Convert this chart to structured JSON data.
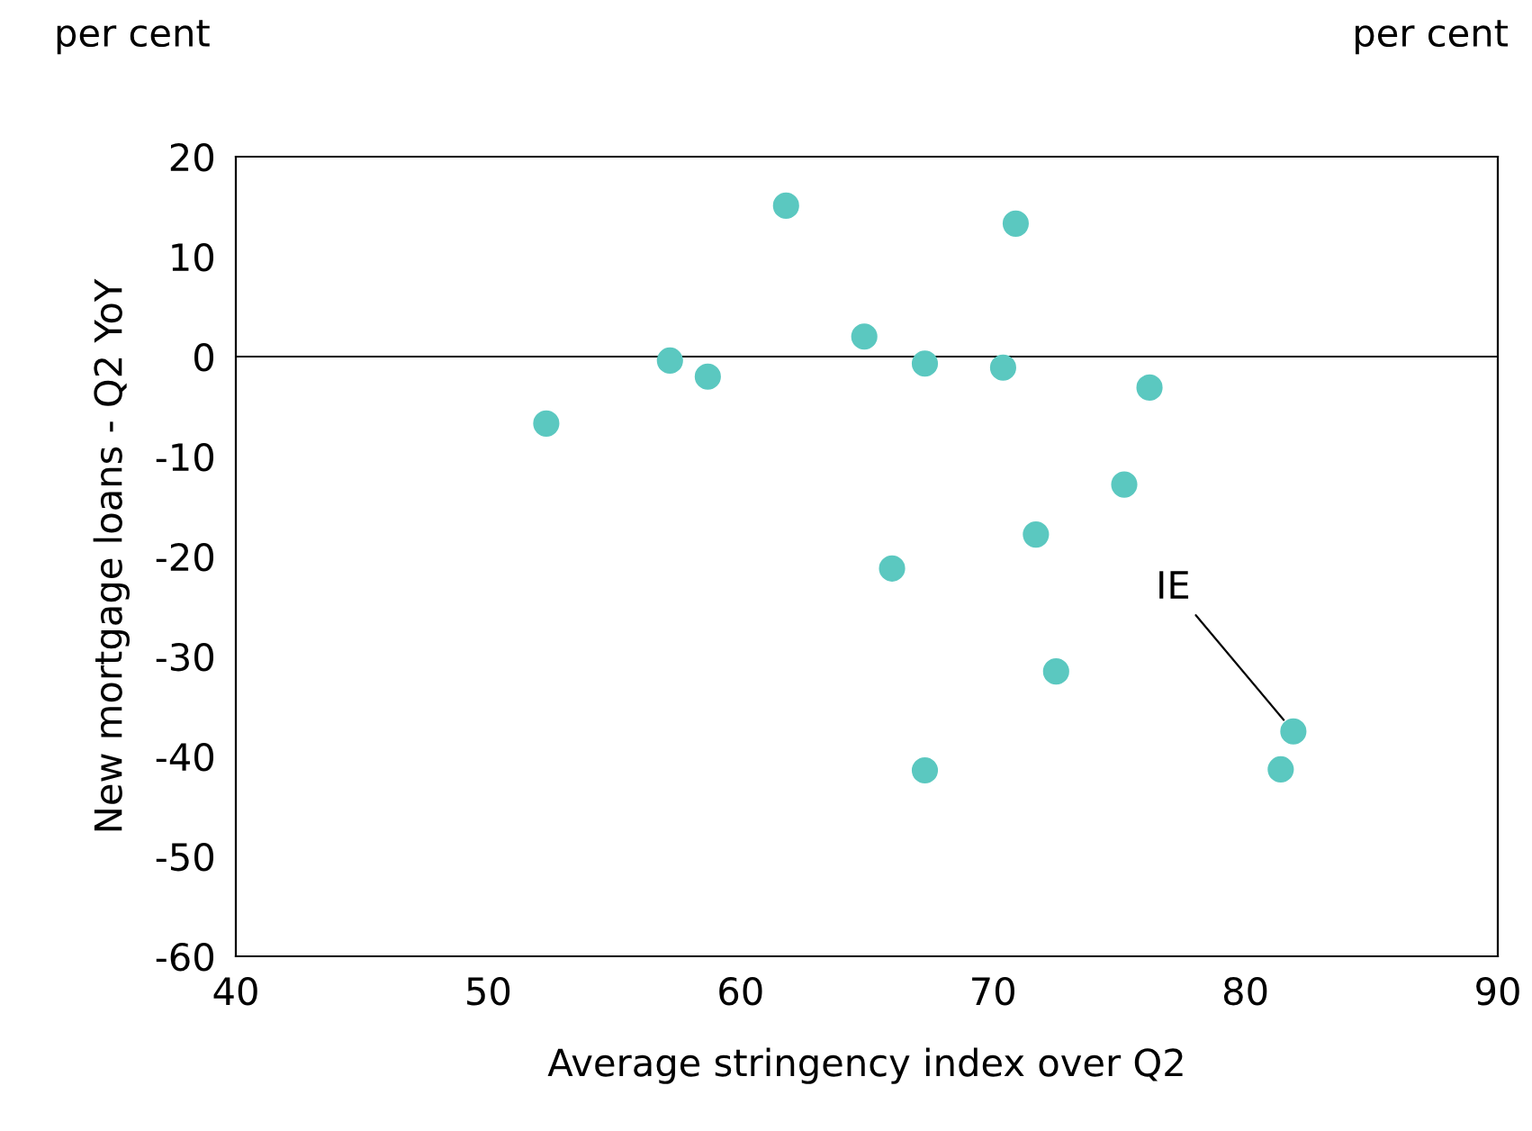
{
  "chart_data": {
    "type": "scatter",
    "xlabel": "Average stringency index over Q2",
    "ylabel": "New mortgage loans - Q2 YoY",
    "x": [
      52.3,
      57.2,
      58.7,
      61.8,
      64.9,
      67.3,
      70.4,
      70.9,
      76.2,
      75.2,
      71.7,
      66.0,
      72.5,
      67.3,
      81.4,
      81.9
    ],
    "series": [
      {
        "color": "#5bc8c0",
        "values": [
          -6.7,
          -0.4,
          -2.0,
          15.1,
          2.0,
          -0.7,
          -1.1,
          13.3,
          -3.1,
          -12.8,
          -17.8,
          -21.2,
          -31.5,
          -41.4,
          -41.3,
          -37.5
        ]
      }
    ],
    "xlim": [
      40,
      90
    ],
    "xticks": [
      40,
      50,
      60,
      70,
      80,
      90
    ],
    "ylim": [
      -60,
      20
    ],
    "yticks": [
      -60,
      -50,
      -40,
      -30,
      -20,
      -10,
      0,
      10,
      20
    ],
    "ref_lines": [
      {
        "axis": "y",
        "value": 0,
        "color": "#000000"
      }
    ],
    "annotations": [
      {
        "text": "IE",
        "x": 81.9,
        "y": -37.5
      },
      "per cent",
      "per cent"
    ],
    "marker": "circle",
    "grid": false,
    "legend": false
  }
}
